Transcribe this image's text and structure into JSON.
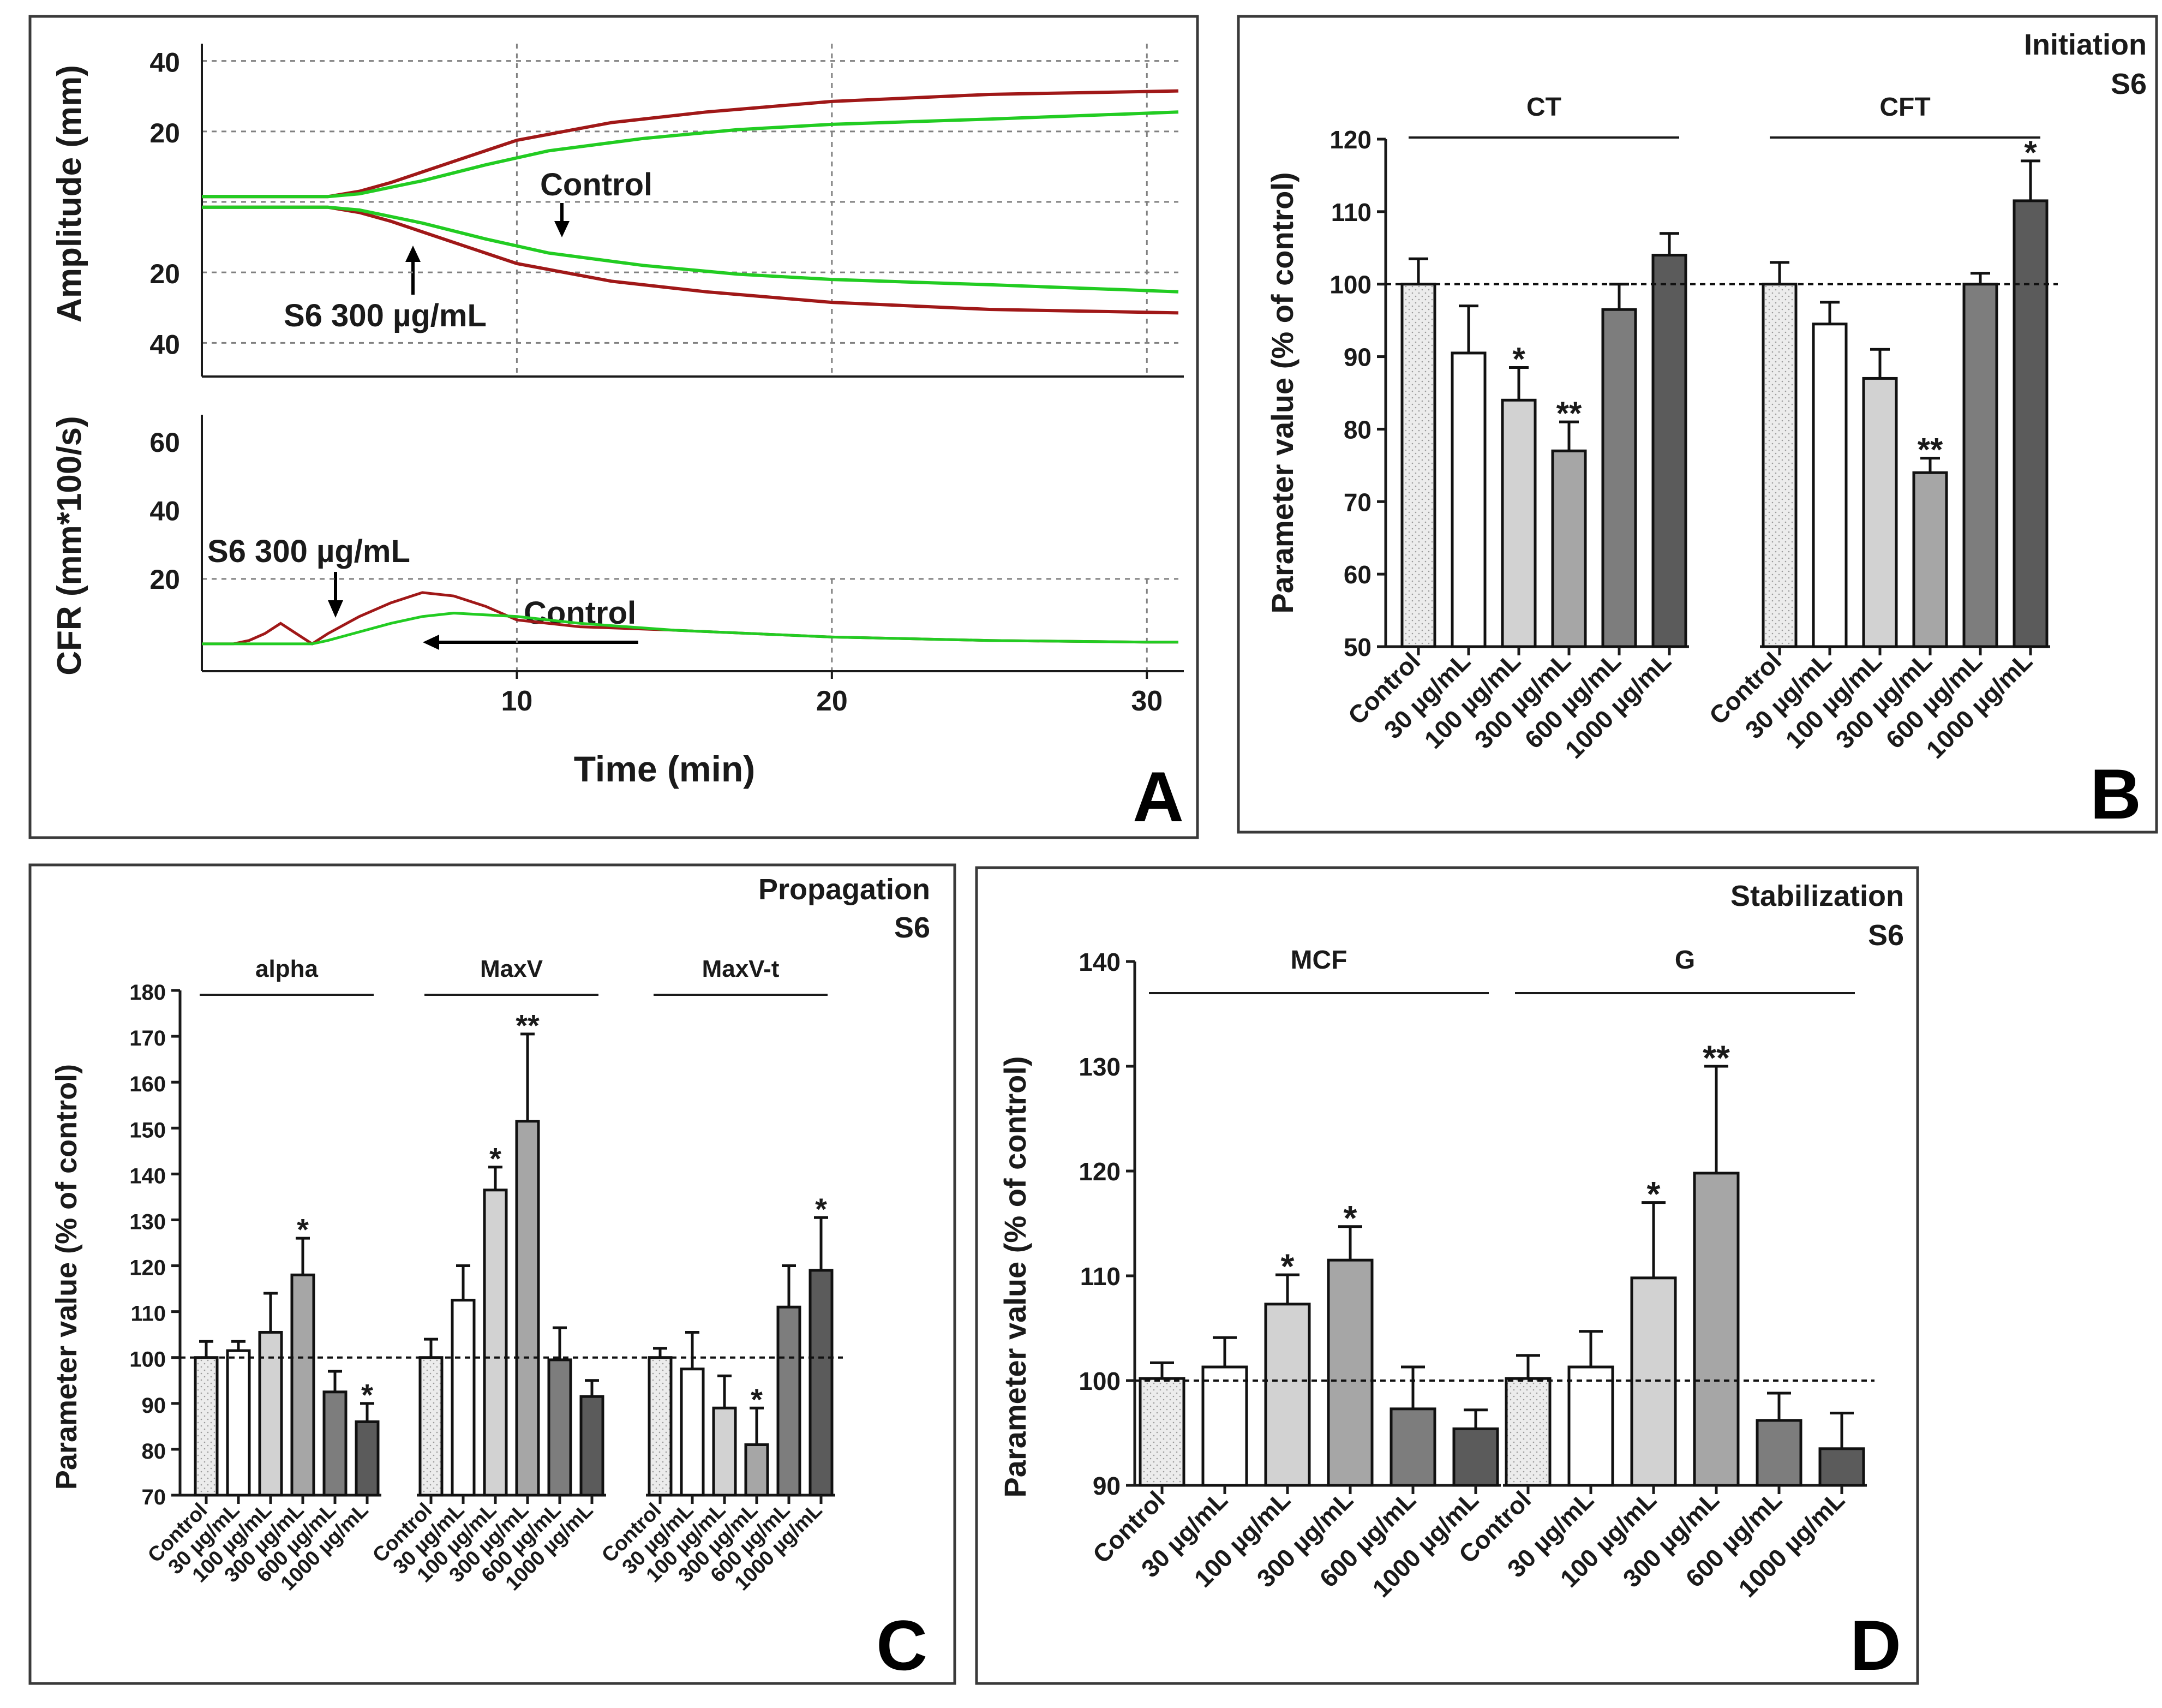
{
  "x_categories": [
    "Control",
    "30 µg/mL",
    "100 µg/mL",
    "300 µg/mL",
    "600 µg/mL",
    "1000 µg/mL"
  ],
  "colors": {
    "s6_trace": "#a01818",
    "control_trace": "#22cc22",
    "bar_control": "#ececec",
    "bar_30": "#ffffff",
    "bar_100": "#d2d2d2",
    "bar_300": "#a6a6a6",
    "bar_600": "#7d7d7d",
    "bar_1000": "#5b5b5b",
    "axis": "#1a1a1a",
    "grid": "#808080"
  },
  "chart_data": [
    {
      "id": "A",
      "type": "line",
      "panel_letter": "A",
      "xlabel": "Time (min)",
      "x_ticks": [
        "10",
        "20",
        "30"
      ],
      "xlim": [
        0,
        31
      ],
      "subplots": [
        {
          "ylabel": "Amplitude (mm)",
          "y_ticks": [
            "40",
            "20",
            "20",
            "40"
          ],
          "ylim": [
            -48,
            48
          ],
          "series": [
            {
              "name": "S6 300 µg/mL",
              "x": [
                0,
                4,
                5,
                6,
                8,
                10,
                13,
                16,
                20,
                25,
                31
              ],
              "y": [
                0,
                0,
                1.5,
                4,
                10,
                16,
                21,
                24,
                27,
                29,
                30
              ]
            },
            {
              "name": "Control",
              "x": [
                0,
                4,
                5,
                7,
                9,
                11,
                14,
                17,
                20,
                25,
                31
              ],
              "y": [
                0,
                0,
                0.8,
                4.5,
                9,
                13,
                16.5,
                19,
                20.5,
                22,
                24
              ]
            }
          ],
          "annotations": [
            "Control",
            "S6 300 µg/mL"
          ]
        },
        {
          "ylabel": "CFR (mm*100/s)",
          "y_ticks": [
            "60",
            "40",
            "20"
          ],
          "ylim": [
            -3,
            72
          ],
          "series": [
            {
              "name": "S6 300 µg/mL",
              "x": [
                0,
                1,
                1.5,
                2,
                2.5,
                3,
                3.5,
                4,
                5,
                6,
                7,
                8,
                9,
                10,
                12,
                15,
                20,
                25,
                30,
                31
              ],
              "y": [
                1,
                1,
                2,
                4,
                7,
                4,
                1,
                4,
                9,
                13,
                16,
                15,
                12,
                8,
                6,
                5,
                3,
                2,
                1.5,
                1.5
              ]
            },
            {
              "name": "Control",
              "x": [
                0,
                2,
                3.5,
                4,
                5,
                6,
                7,
                8,
                9,
                10,
                12,
                15,
                20,
                25,
                30,
                31
              ],
              "y": [
                1,
                1,
                1,
                2,
                4.5,
                7,
                9,
                10,
                9.5,
                9,
                7,
                5,
                3,
                2,
                1.5,
                1.5
              ]
            }
          ],
          "annotations": [
            "S6 300 µg/mL",
            "Control"
          ]
        }
      ]
    },
    {
      "id": "B",
      "type": "bar",
      "title": "Initiation",
      "subtitle": "S6",
      "panel_letter": "B",
      "ylabel": "Parameter value (% of control)",
      "ylim": [
        50,
        120
      ],
      "y_ticks": [
        50,
        60,
        70,
        80,
        90,
        100,
        110,
        120
      ],
      "reference_line": 100,
      "groups": [
        {
          "name": "CT",
          "values": [
            100,
            90.5,
            84,
            77,
            96.5,
            104
          ],
          "errors": [
            3.5,
            6.5,
            4.5,
            4,
            3.5,
            3
          ],
          "stars": [
            "",
            "",
            "*",
            "**",
            "",
            ""
          ]
        },
        {
          "name": "CFT",
          "values": [
            100,
            94.5,
            87,
            74,
            100,
            111.5
          ],
          "errors": [
            3,
            3,
            4,
            2,
            1.5,
            5.5
          ],
          "stars": [
            "",
            "",
            "",
            "**",
            "",
            "*"
          ]
        }
      ]
    },
    {
      "id": "C",
      "type": "bar",
      "title": "Propagation",
      "subtitle": "S6",
      "panel_letter": "C",
      "ylabel": "Parameter value (% of control)",
      "ylim": [
        70,
        180
      ],
      "y_ticks": [
        70,
        80,
        90,
        100,
        110,
        120,
        130,
        140,
        150,
        160,
        170,
        180
      ],
      "reference_line": 100,
      "groups": [
        {
          "name": "alpha",
          "values": [
            100,
            101.5,
            105.5,
            118,
            92.5,
            86
          ],
          "errors": [
            3.5,
            2,
            8.5,
            8,
            4.5,
            4
          ],
          "stars": [
            "",
            "",
            "",
            "*",
            "",
            "*"
          ]
        },
        {
          "name": "MaxV",
          "values": [
            100,
            112.5,
            136.5,
            151.5,
            99.5,
            91.5
          ],
          "errors": [
            4,
            7.5,
            5,
            19,
            7,
            3.5
          ],
          "stars": [
            "",
            "",
            "*",
            "**",
            "",
            ""
          ]
        },
        {
          "name": "MaxV-t",
          "values": [
            100,
            97.5,
            89,
            81,
            111,
            119
          ],
          "errors": [
            2,
            8,
            7,
            8,
            9,
            11.5
          ],
          "stars": [
            "",
            "",
            "",
            "*",
            "",
            "*"
          ]
        }
      ]
    },
    {
      "id": "D",
      "type": "bar",
      "title": "Stabilization",
      "subtitle": "S6",
      "panel_letter": "D",
      "ylabel": "Parameter value (% of control)",
      "ylim": [
        90,
        140
      ],
      "y_ticks": [
        90,
        100,
        110,
        120,
        130,
        140
      ],
      "reference_line": 100,
      "groups": [
        {
          "name": "MCF",
          "values": [
            100.2,
            101.3,
            107.3,
            111.5,
            97.3,
            95.4
          ],
          "errors": [
            1.5,
            2.8,
            2.8,
            3.2,
            4,
            1.8
          ],
          "stars": [
            "",
            "",
            "*",
            "*",
            "",
            ""
          ]
        },
        {
          "name": "G",
          "values": [
            100.2,
            101.3,
            109.8,
            119.8,
            96.2,
            93.5
          ],
          "errors": [
            2.2,
            3.4,
            7.2,
            10.2,
            2.6,
            3.4
          ],
          "stars": [
            "",
            "",
            "*",
            "**",
            "",
            ""
          ]
        }
      ]
    }
  ]
}
